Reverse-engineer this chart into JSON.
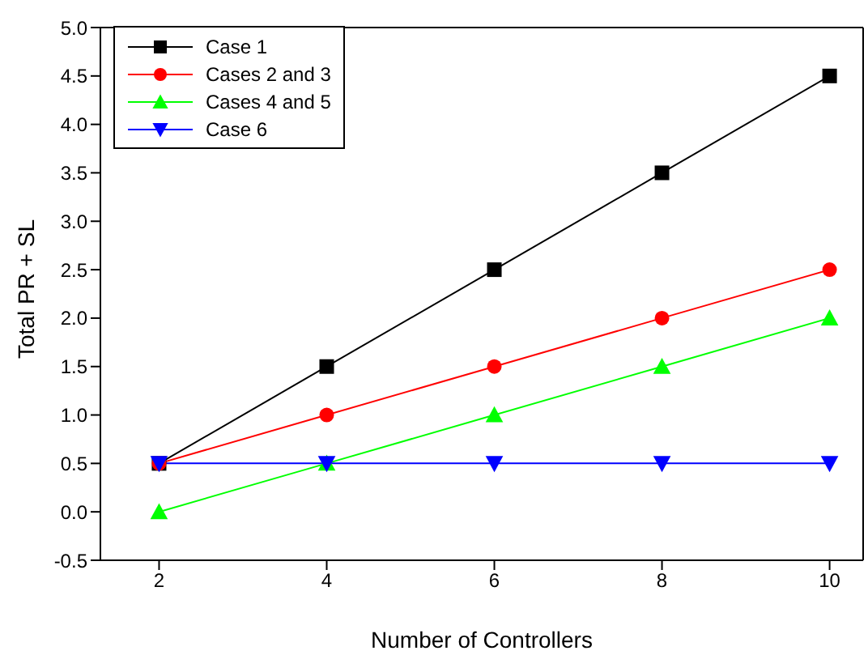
{
  "chart_data": {
    "type": "line",
    "xlabel": "Number of Controllers",
    "ylabel": "Total PR + SL",
    "x": [
      2,
      4,
      6,
      8,
      10
    ],
    "series": [
      {
        "name": "Case 1",
        "color": "#000000",
        "marker": "square",
        "values": [
          0.5,
          1.5,
          2.5,
          3.5,
          4.5
        ]
      },
      {
        "name": "Cases 2 and 3",
        "color": "#ff0000",
        "marker": "circle",
        "values": [
          0.5,
          1,
          1.5,
          2,
          2.5
        ]
      },
      {
        "name": "Cases 4 and 5",
        "color": "#00ff00",
        "marker": "triangle",
        "values": [
          0,
          0.5,
          1,
          1.5,
          2
        ]
      },
      {
        "name": "Case 6",
        "color": "#0000ff",
        "marker": "triangle-down",
        "values": [
          0.5,
          0.5,
          0.5,
          0.5,
          0.5
        ]
      }
    ],
    "xlim": [
      1.3,
      10.4
    ],
    "xticks": [
      2,
      4,
      6,
      8,
      10
    ],
    "ylim": [
      -0.5,
      5
    ],
    "yticks": [
      {
        "value": -0.5,
        "label": "-0.5"
      },
      {
        "value": 0,
        "label": "0.0"
      },
      {
        "value": 0.5,
        "label": "0.5"
      },
      {
        "value": 1,
        "label": "1.0"
      },
      {
        "value": 1.5,
        "label": "1.5"
      },
      {
        "value": 2,
        "label": "2.0"
      },
      {
        "value": 2.5,
        "label": "2.5"
      },
      {
        "value": 3,
        "label": "3.0"
      },
      {
        "value": 3.5,
        "label": "3.5"
      },
      {
        "value": 4,
        "label": "4.0"
      },
      {
        "value": 4.5,
        "label": "4.5"
      },
      {
        "value": 5,
        "label": "5.0"
      }
    ],
    "grid": false,
    "legend": "top left",
    "line_style": "solid"
  }
}
